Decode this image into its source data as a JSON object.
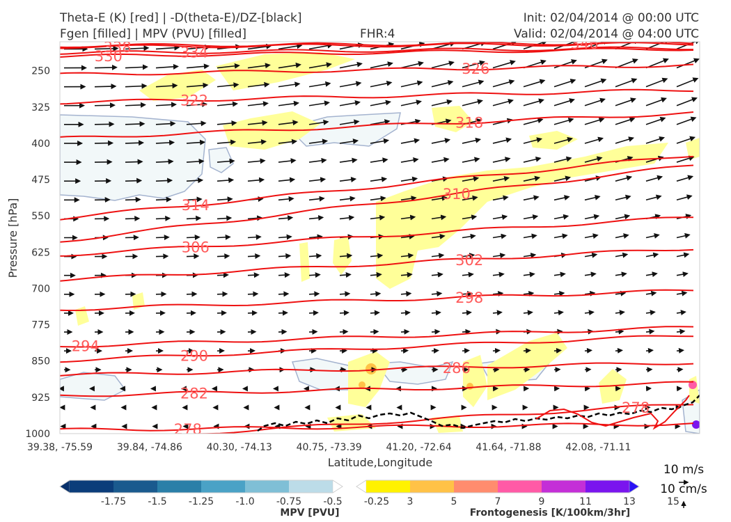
{
  "header": {
    "title_left_1": "Theta-E (K) [red] | -D(theta-E)/DZ-[black]",
    "title_left_2": "Fgen [filled] | MPV (PVU) [filled]",
    "fhr": "FHR:4",
    "init": "Init: 02/04/2014 @ 00:00 UTC",
    "valid": "Valid: 02/04/2014 @ 04:00 UTC"
  },
  "chart_data": {
    "type": "cross-section",
    "xlabel": "Latitude,Longitude",
    "ylabel": "Pressure [hPa]",
    "x_ticks": [
      "39.38, -75.59",
      "39.84, -74.86",
      "40.30, -74.13",
      "40.75, -73.39",
      "41.20, -72.64",
      "41.64, -71.88",
      "42.08, -71.11"
    ],
    "y_ticks": [
      250,
      325,
      400,
      475,
      550,
      625,
      700,
      775,
      850,
      925,
      1000
    ],
    "ylim": [
      1000,
      190
    ],
    "theta_e_contours": [
      {
        "label": "338",
        "x": 0.09,
        "p": 200,
        "slope": -0.5
      },
      {
        "label": "330",
        "x": 0.076,
        "p": 219,
        "slope": -1.2
      },
      {
        "label": "334",
        "x": 0.21,
        "p": 211,
        "slope": -0.8
      },
      {
        "label": "346",
        "x": 0.82,
        "p": 193,
        "slope": -0.5
      },
      {
        "label": "326",
        "x": 0.65,
        "p": 245,
        "slope": -1.5
      },
      {
        "label": "322",
        "x": 0.21,
        "p": 310,
        "slope": -2.0
      },
      {
        "label": "318",
        "x": 0.64,
        "p": 356,
        "slope": -4.0
      },
      {
        "label": "310",
        "x": 0.62,
        "p": 504,
        "slope": -12.0
      },
      {
        "label": "314",
        "x": 0.212,
        "p": 527,
        "slope": -10.0
      },
      {
        "label": "306",
        "x": 0.212,
        "p": 614,
        "slope": -6.0
      },
      {
        "label": "302",
        "x": 0.64,
        "p": 640,
        "slope": -5.0
      },
      {
        "label": "298",
        "x": 0.64,
        "p": 718,
        "slope": -3.0
      },
      {
        "label": "294",
        "x": 0.04,
        "p": 818,
        "slope": -3.0
      },
      {
        "label": "290",
        "x": 0.21,
        "p": 838,
        "slope": -4.0
      },
      {
        "label": "286",
        "x": 0.62,
        "p": 863,
        "slope": -2.0
      },
      {
        "label": "282",
        "x": 0.21,
        "p": 916,
        "slope": -2.0
      },
      {
        "label": "278",
        "x": 0.2,
        "p": 990,
        "slope": -1.0
      },
      {
        "label": "278",
        "x": 0.9,
        "p": 945,
        "slope": -6.0
      }
    ],
    "mpv_colorbar": {
      "label": "MPV [PVU]",
      "ticks": [
        "-1.75",
        "-1.5",
        "-1.25",
        "-1.0",
        "-0.75",
        "-0.5",
        "-0.25"
      ],
      "colors": [
        "#08306b",
        "#0b3d7a",
        "#1a5a8e",
        "#2a7fa8",
        "#4aa2c6",
        "#7fbfd6",
        "#bcdce8",
        "#ffffff"
      ]
    },
    "fgen_colorbar": {
      "label": "Frontogenesis [K/100km/3hr]",
      "ticks": [
        "3",
        "5",
        "7",
        "9",
        "11",
        "13",
        "15"
      ],
      "colors": [
        "#ffffff",
        "#fff200",
        "#ffc247",
        "#ff8c6e",
        "#ff5aa6",
        "#c42fd7",
        "#7a15ee",
        "#2b12f5"
      ]
    },
    "quiver_key": {
      "horizontal": "10 m/s",
      "vertical": "10 cm/s"
    }
  }
}
